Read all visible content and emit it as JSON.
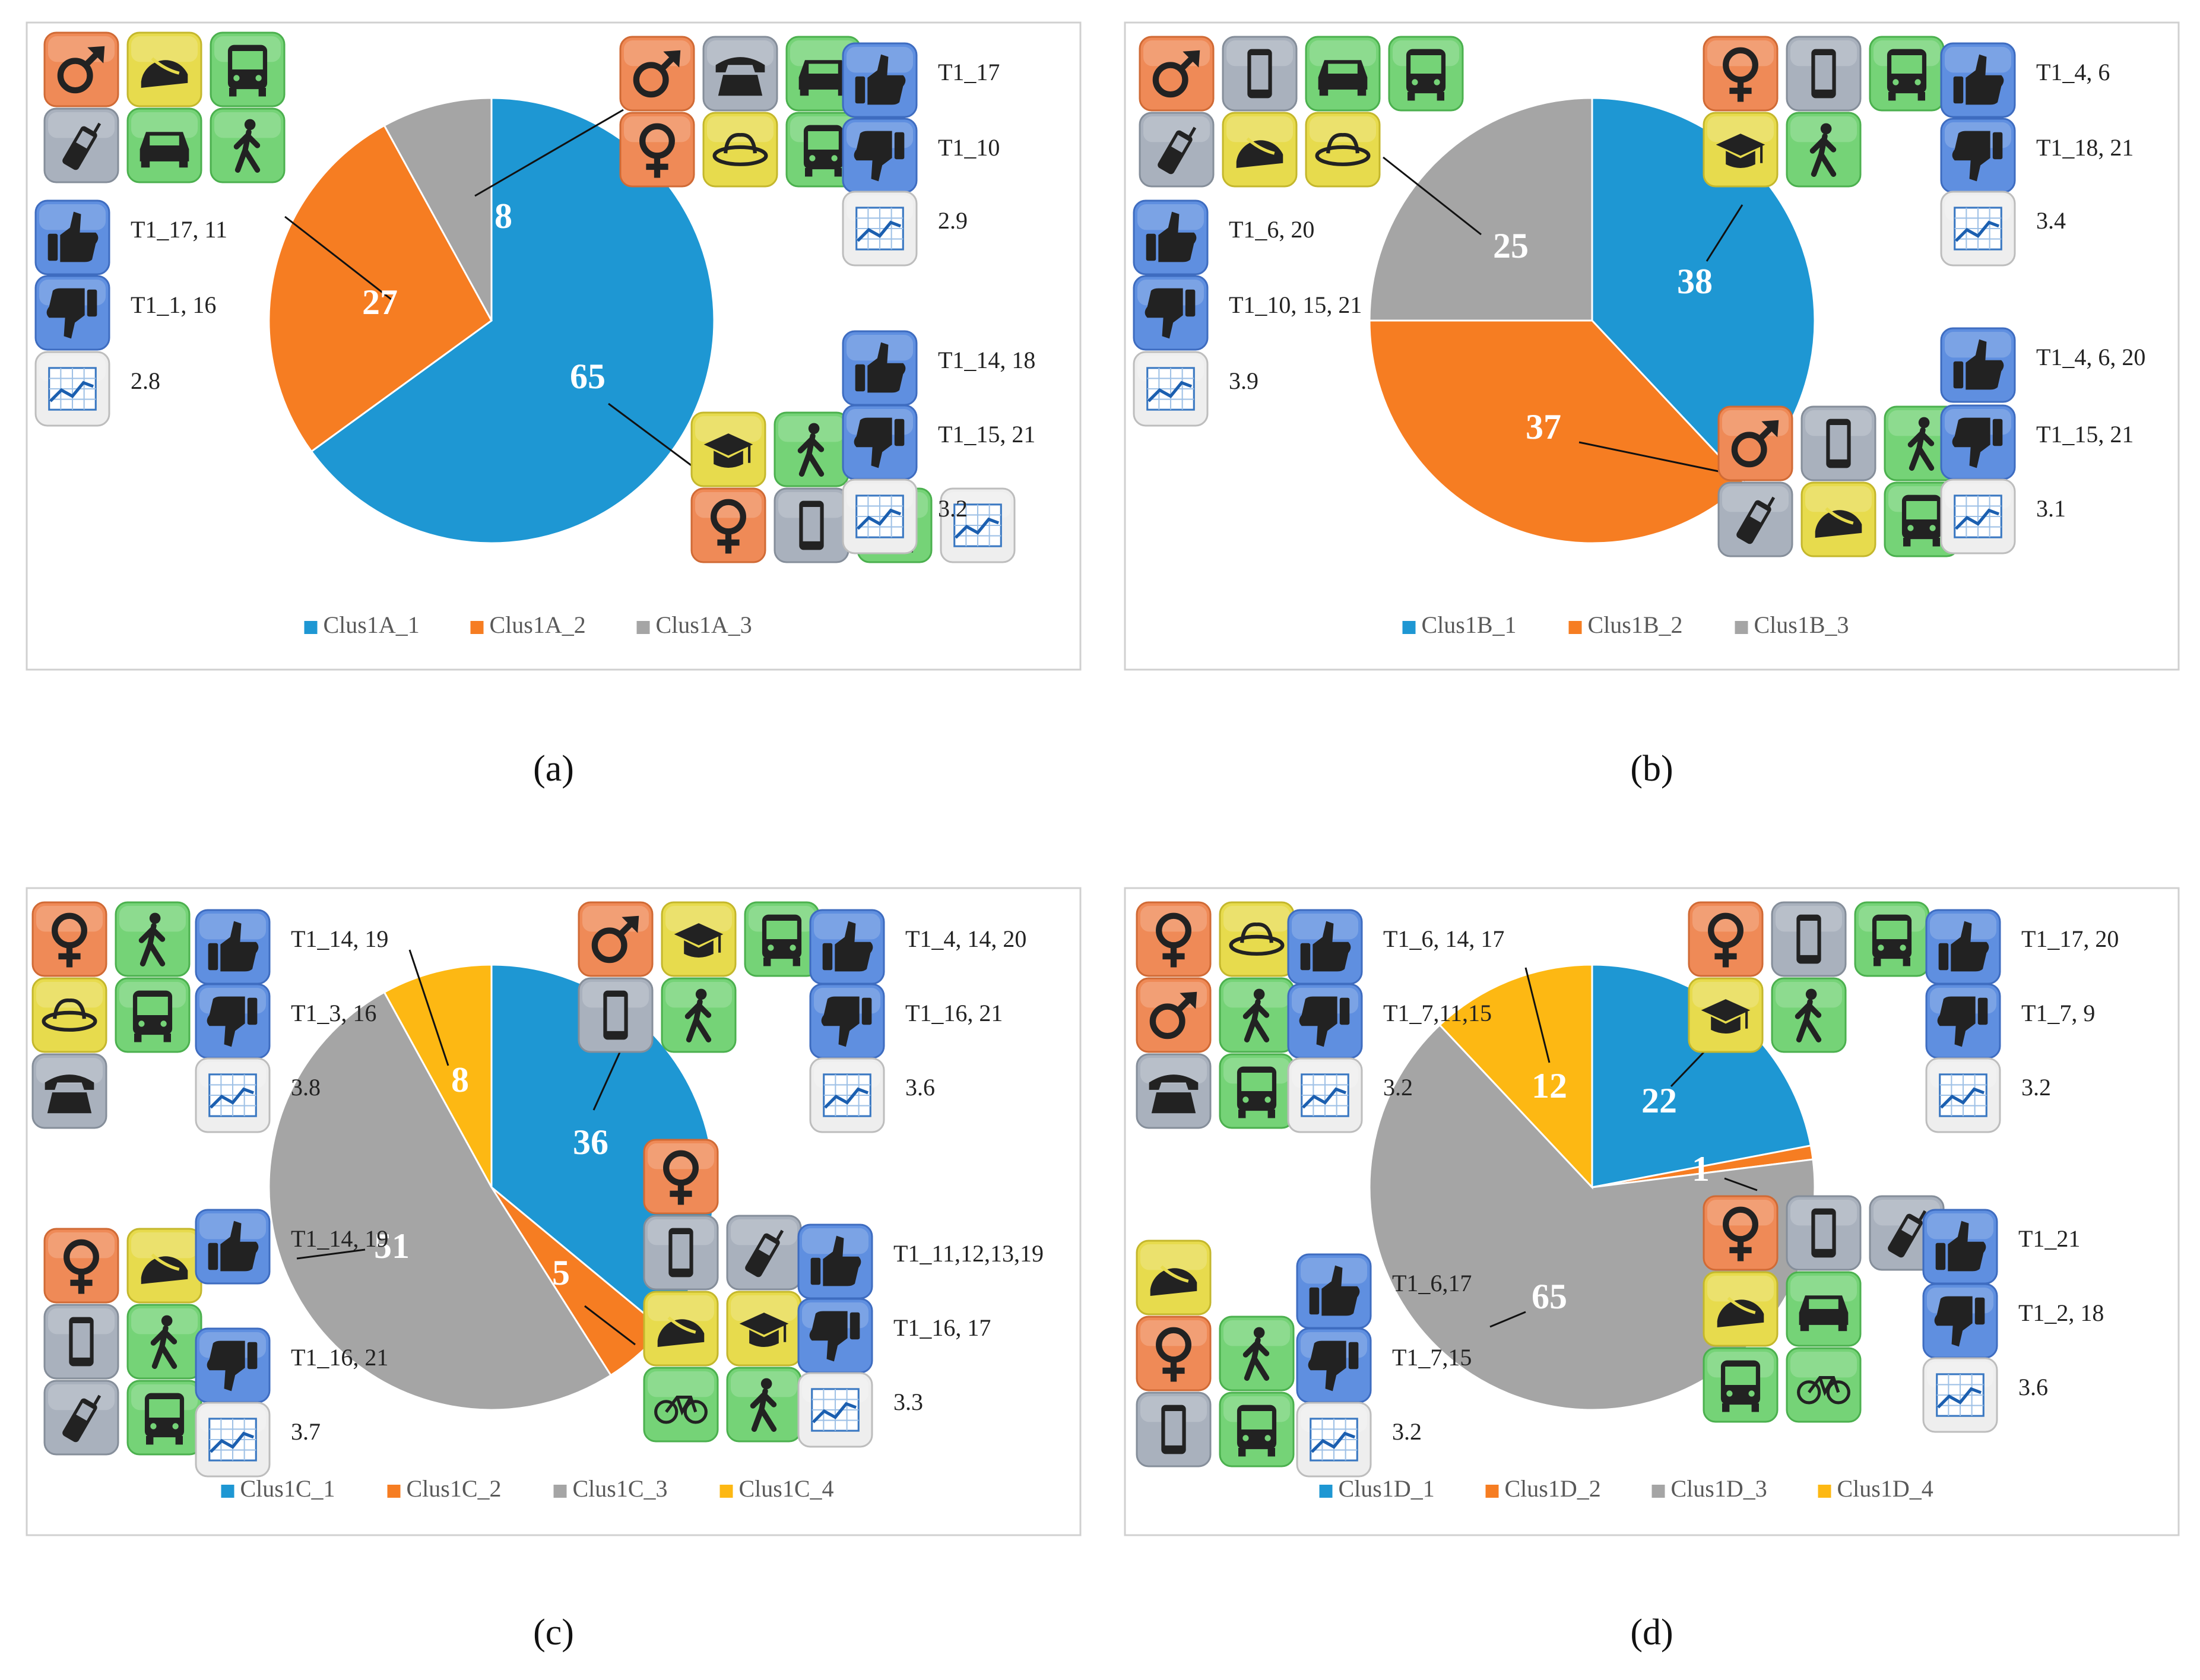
{
  "figure": {
    "panels": [
      {
        "caption": "(a)",
        "chart_data": {
          "type": "pie",
          "categories": [
            "Clus1A_1",
            "Clus1A_2",
            "Clus1A_3"
          ],
          "values": [
            65,
            27,
            8
          ],
          "legend_position": "bottom"
        },
        "profiles": [
          {
            "cluster": "Clus1A_1",
            "icons": [
              [
                "education",
                "walking"
              ],
              [
                "female",
                "smartphone",
                "bus",
                "chart"
              ]
            ],
            "likes": "T1_14, 18",
            "dislikes": "T1_15, 21",
            "score": "3.2"
          },
          {
            "cluster": "Clus1A_2",
            "icons": [
              [
                "male",
                "helmet",
                "bus"
              ],
              [
                "cellphone",
                "car",
                "walking"
              ]
            ],
            "likes": "T1_17, 11",
            "dislikes": "T1_1, 16",
            "score": "2.8"
          },
          {
            "cluster": "Clus1A_3",
            "icons": [
              [
                "male",
                "telephone",
                "car"
              ],
              [
                "female",
                "hat",
                "bus"
              ]
            ],
            "likes": "T1_17",
            "dislikes": "T1_10",
            "score": "2.9"
          }
        ]
      },
      {
        "caption": "(b)",
        "chart_data": {
          "type": "pie",
          "categories": [
            "Clus1B_1",
            "Clus1B_2",
            "Clus1B_3"
          ],
          "values": [
            38,
            37,
            25
          ],
          "legend_position": "bottom"
        },
        "profiles": [
          {
            "cluster": "Clus1B_1",
            "icons": [
              [
                "female",
                "smartphone",
                "bus"
              ],
              [
                "education",
                "walking"
              ]
            ],
            "likes": "T1_4, 6",
            "dislikes": "T1_18, 21",
            "score": "3.4"
          },
          {
            "cluster": "Clus1B_2",
            "icons": [
              [
                "male",
                "smartphone",
                "walking"
              ],
              [
                "cellphone",
                "helmet",
                "bus"
              ]
            ],
            "likes": "T1_4, 6, 20",
            "dislikes": "T1_15, 21",
            "score": "3.1"
          },
          {
            "cluster": "Clus1B_3",
            "icons": [
              [
                "male",
                "smartphone",
                "car",
                "bus"
              ],
              [
                "cellphone",
                "helmet",
                "hat"
              ]
            ],
            "likes": "T1_6, 20",
            "dislikes": "T1_10, 15, 21",
            "score": "3.9"
          }
        ]
      },
      {
        "caption": "(c)",
        "chart_data": {
          "type": "pie",
          "categories": [
            "Clus1C_1",
            "Clus1C_2",
            "Clus1C_3",
            "Clus1C_4"
          ],
          "values": [
            36,
            5,
            51,
            8
          ],
          "legend_position": "bottom"
        },
        "profiles": [
          {
            "cluster": "Clus1C_1",
            "icons": [
              [
                "male",
                "education",
                "bus"
              ],
              [
                "smartphone",
                "walking"
              ]
            ],
            "likes": "T1_4, 14, 20",
            "dislikes": "T1_16, 21",
            "score": "3.6"
          },
          {
            "cluster": "Clus1C_2",
            "icons": [
              [
                "female"
              ],
              [
                "smartphone",
                "cellphone"
              ],
              [
                "helmet",
                "education"
              ],
              [
                "bicycle",
                "walking"
              ]
            ],
            "likes": "T1_11,12,13,19",
            "dislikes": "T1_16, 17",
            "score": "3.3"
          },
          {
            "cluster": "Clus1C_3",
            "icons": [
              [
                "female",
                "helmet"
              ],
              [
                "smartphone",
                "walking"
              ],
              [
                "cellphone",
                "bus"
              ]
            ],
            "likes": "T1_14, 19",
            "dislikes": "T1_16, 21",
            "score": "3.7"
          },
          {
            "cluster": "Clus1C_4",
            "icons": [
              [
                "female",
                "walking"
              ],
              [
                "hat",
                "bus"
              ],
              [
                "telephone"
              ]
            ],
            "likes": "T1_14, 19",
            "dislikes": "T1_3, 16",
            "score": "3.8"
          }
        ]
      },
      {
        "caption": "(d)",
        "chart_data": {
          "type": "pie",
          "categories": [
            "Clus1D_1",
            "Clus1D_2",
            "Clus1D_3",
            "Clus1D_4"
          ],
          "values": [
            22,
            1,
            65,
            12
          ],
          "legend_position": "bottom"
        },
        "profiles": [
          {
            "cluster": "Clus1D_1",
            "icons": [
              [
                "female",
                "smartphone",
                "bus"
              ],
              [
                "education",
                "walking"
              ]
            ],
            "likes": "T1_17, 20",
            "dislikes": "T1_7, 9",
            "score": "3.2"
          },
          {
            "cluster": "Clus1D_2",
            "icons": [
              [
                "female",
                "smartphone",
                "cellphone"
              ],
              [
                "helmet",
                "car"
              ],
              [
                "bus",
                "bicycle"
              ]
            ],
            "likes": "T1_21",
            "dislikes": "T1_2, 18",
            "score": "3.6"
          },
          {
            "cluster": "Clus1D_3",
            "icons": [
              [
                "helmet"
              ],
              [
                "female",
                "walking"
              ],
              [
                "smartphone",
                "bus"
              ]
            ],
            "likes": "T1_6,17",
            "dislikes": "T1_7,15",
            "score": "3.2"
          },
          {
            "cluster": "Clus1D_4",
            "icons": [
              [
                "female",
                "hat"
              ],
              [
                "male",
                "walking"
              ],
              [
                "telephone",
                "bus"
              ]
            ],
            "likes": "T1_6, 14, 17",
            "dislikes": "T1_7,11,15",
            "score": "3.2"
          }
        ]
      }
    ],
    "colors": {
      "series": [
        "#1e97d3",
        "#f67d22",
        "#a5a5a5",
        "#fdb813"
      ]
    }
  }
}
